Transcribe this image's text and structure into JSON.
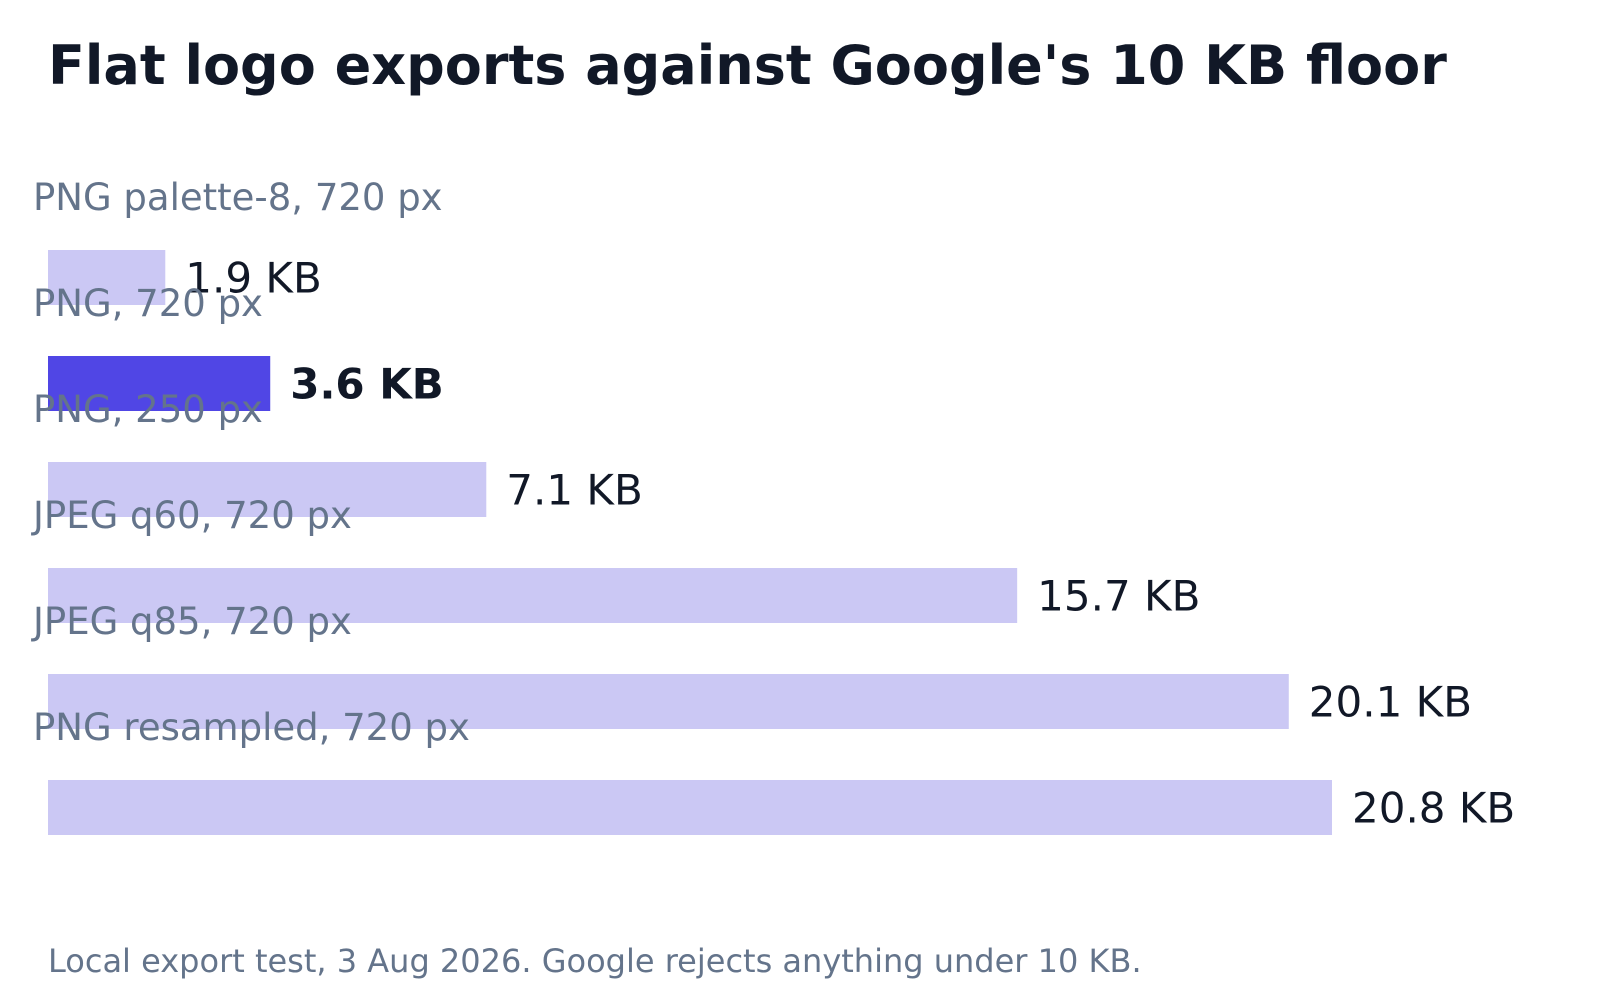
{
  "chart_data": {
    "type": "bar",
    "orientation": "horizontal",
    "title": "Flat logo exports against Google's 10 KB floor",
    "categories": [
      "PNG palette-8, 720 px",
      "PNG, 720 px",
      "PNG, 250 px",
      "JPEG q60, 720 px",
      "JPEG q85, 720 px",
      "PNG resampled, 720 px"
    ],
    "values": [
      1.9,
      3.6,
      7.1,
      15.7,
      20.1,
      20.8
    ],
    "value_labels": [
      "1.9 KB",
      "3.6 KB",
      "7.1 KB",
      "15.7 KB",
      "20.1 KB",
      "20.8 KB"
    ],
    "unit": "KB",
    "highlight_index": 1,
    "xlim": [
      0,
      20.8
    ],
    "grid": false,
    "legend": "none",
    "note": "Local export test, 3 Aug 2026. Google rejects anything under 10 KB."
  },
  "colors": {
    "bar": "#cbc8f4",
    "highlight_bar": "#5046e5",
    "title": "#111827",
    "label": "#64748b",
    "value": "#111827"
  }
}
